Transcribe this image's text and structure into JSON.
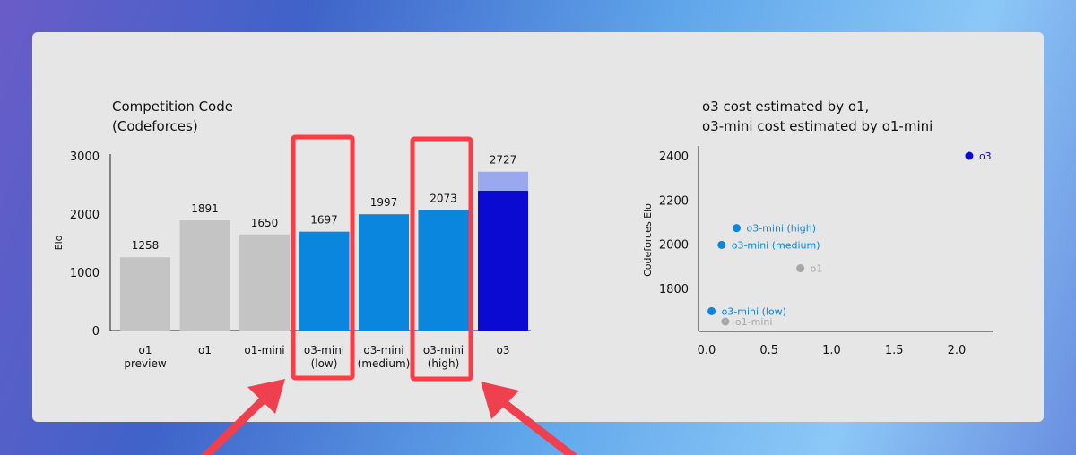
{
  "chart_data": [
    {
      "type": "bar",
      "title": "Competition Code\n(Codeforces)",
      "ylabel": "Elo",
      "ylim": [
        0,
        3000
      ],
      "yticks": [
        0,
        1000,
        2000,
        3000
      ],
      "categories": [
        "o1\npreview",
        "o1",
        "o1-mini",
        "o3-mini\n(low)",
        "o3-mini\n(medium)",
        "o3-mini\n(high)",
        "o3"
      ],
      "values": [
        1258,
        1891,
        1650,
        1697,
        1997,
        2073,
        2727
      ],
      "inner_value_o3": 2400,
      "colors": [
        "#c4c4c4",
        "#c4c4c4",
        "#c4c4c4",
        "#0a86de",
        "#0a86de",
        "#0a86de",
        "#0a0ad2"
      ],
      "o3_top_color": "#9aa8ee",
      "highlighted": [
        "o3-mini\n(low)",
        "o3-mini\n(high)"
      ],
      "highlight_color": "#ff3b46"
    },
    {
      "type": "scatter",
      "title": "o3 cost estimated by o1,\no3-mini cost estimated by o1-mini",
      "ylabel": "Codeforces Elo",
      "xlim": [
        0,
        2.35
      ],
      "ylim": [
        1630,
        2430
      ],
      "xticks": [
        "0.0",
        "0.5",
        "1.0",
        "1.5",
        "2.0"
      ],
      "yticks": [
        1800,
        2000,
        2200,
        2400
      ],
      "points": [
        {
          "label": "o3",
          "x": 2.1,
          "y": 2400,
          "color": "#0a0ad2"
        },
        {
          "label": "o3-mini  (high)",
          "x": 0.24,
          "y": 2073,
          "color": "#0a86de"
        },
        {
          "label": "o3-mini  (medium)",
          "x": 0.12,
          "y": 1997,
          "color": "#0a86de"
        },
        {
          "label": "o1",
          "x": 0.75,
          "y": 1891,
          "color": "#a8a8a8"
        },
        {
          "label": "o3-mini  (low)",
          "x": 0.04,
          "y": 1697,
          "color": "#0a86de"
        },
        {
          "label": "o1-mini",
          "x": 0.15,
          "y": 1650,
          "color": "#a8a8a8"
        }
      ]
    }
  ],
  "annotation": {
    "arrow_color": "#f04050"
  }
}
